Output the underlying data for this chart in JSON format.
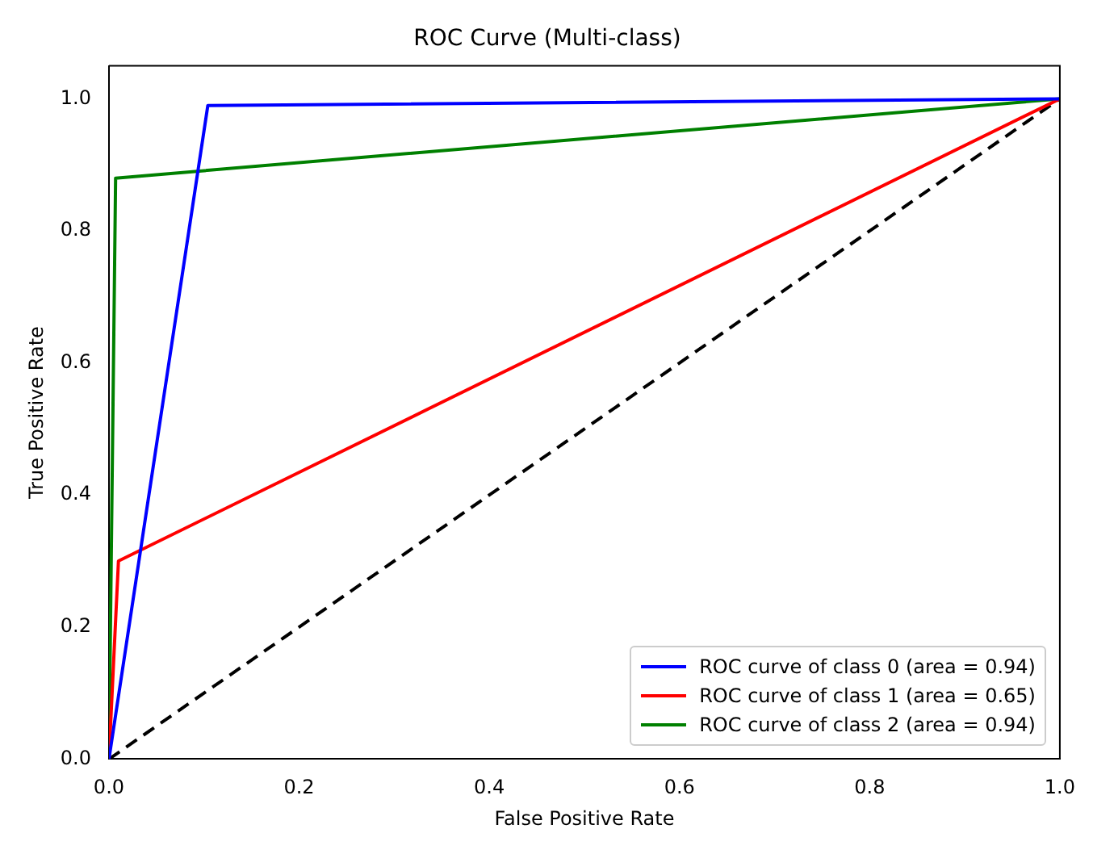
{
  "chart_data": {
    "type": "line",
    "title": "ROC Curve (Multi-class)",
    "xlabel": "False Positive Rate",
    "ylabel": "True Positive Rate",
    "series": [
      {
        "name": "ROC curve of class 0 (area = 0.94)",
        "color": "#0000ff",
        "x": [
          0,
          0.104,
          1
        ],
        "values": [
          0,
          0.99,
          1
        ]
      },
      {
        "name": "ROC curve of class 1 (area = 0.65)",
        "color": "#ff0000",
        "x": [
          0,
          0.01,
          1
        ],
        "values": [
          0,
          0.3,
          1
        ]
      },
      {
        "name": "ROC curve of class 2 (area = 0.94)",
        "color": "#008000",
        "x": [
          0,
          0.007,
          1
        ],
        "values": [
          0,
          0.88,
          1
        ]
      },
      {
        "color": "#000000",
        "x": [
          0,
          1
        ],
        "values": [
          0,
          1
        ],
        "line_style": "dashed"
      }
    ],
    "xlim": [
      0,
      1
    ],
    "ylim": [
      0,
      1.05
    ],
    "xticks": [
      {
        "value": 0,
        "label": "0.0"
      },
      0.2,
      0.4,
      0.6,
      0.8,
      {
        "value": 1,
        "label": "1.0"
      }
    ],
    "yticks": [
      {
        "value": 0,
        "label": "0.0"
      },
      0.2,
      0.4,
      0.6,
      0.8,
      {
        "value": 1,
        "label": "1.0"
      }
    ],
    "legend": "bottom right"
  }
}
